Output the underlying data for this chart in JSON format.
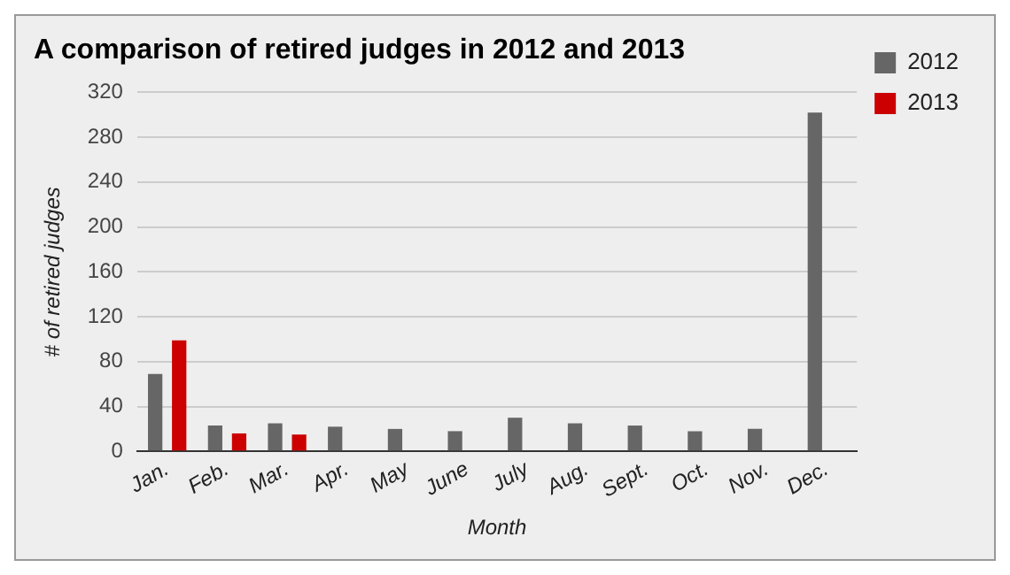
{
  "chart_data": {
    "type": "bar",
    "title": "A comparison of retired judges in 2012 and 2013",
    "xlabel": "Month",
    "ylabel": "# of retired judges",
    "categories": [
      "Jan.",
      "Feb.",
      "Mar.",
      "Apr.",
      "May",
      "June",
      "July",
      "Aug.",
      "Sept.",
      "Oct.",
      "Nov.",
      "Dec."
    ],
    "series": [
      {
        "name": "2012",
        "color": "#666666",
        "values": [
          69,
          23,
          25,
          22,
          20,
          18,
          30,
          25,
          23,
          18,
          20,
          302
        ]
      },
      {
        "name": "2013",
        "color": "#cc0000",
        "values": [
          99,
          16,
          15,
          null,
          null,
          null,
          null,
          null,
          null,
          null,
          null,
          null
        ]
      }
    ],
    "ylim": [
      0,
      320
    ],
    "yticks": [
      0,
      40,
      80,
      120,
      160,
      200,
      240,
      280,
      320
    ],
    "grid": "y",
    "legend": "top right"
  }
}
